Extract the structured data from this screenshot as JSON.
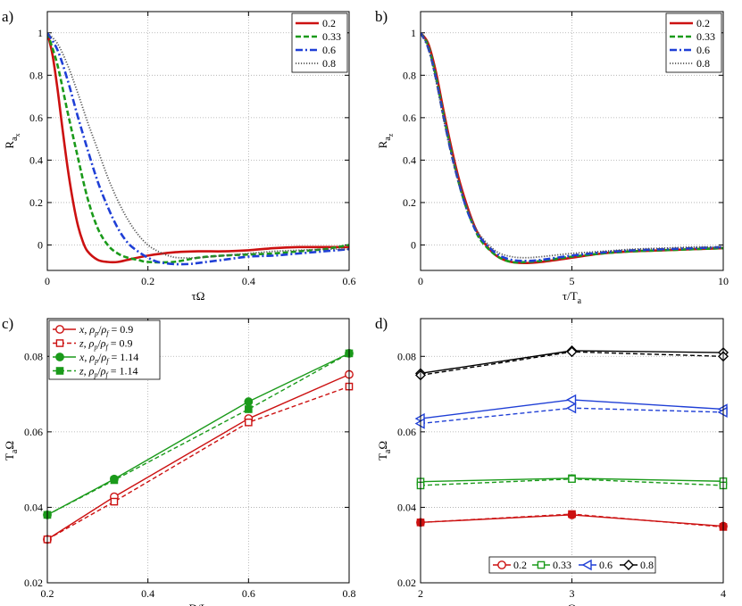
{
  "chart_data": [
    {
      "panel": "a)",
      "type": "line",
      "xlabel": "τΩ",
      "ylabel": "R",
      "ylabel_sub": "a",
      "ylabel_subsub": "x",
      "xlim": [
        0,
        0.6
      ],
      "ylim": [
        -0.12,
        1.1
      ],
      "xticks": [
        "0",
        "0.2",
        "0.4",
        "0.6"
      ],
      "xtick_values": [
        0,
        0.2,
        0.4,
        0.6
      ],
      "yticks": [
        "0",
        "0.2",
        "0.4",
        "0.6",
        "0.8",
        "1"
      ],
      "ytick_values": [
        0,
        0.2,
        0.4,
        0.6,
        0.8,
        1
      ],
      "grid": true,
      "legend": "top-right",
      "series": [
        {
          "name": "0.2",
          "color": "#cc1111",
          "dash": "solid",
          "width": 2.6,
          "x": [
            0,
            0.01,
            0.02,
            0.03,
            0.04,
            0.05,
            0.06,
            0.07,
            0.08,
            0.1,
            0.12,
            0.14,
            0.16,
            0.2,
            0.25,
            0.3,
            0.35,
            0.4,
            0.45,
            0.5,
            0.55,
            0.6
          ],
          "y": [
            1,
            0.9,
            0.74,
            0.55,
            0.37,
            0.22,
            0.1,
            0.02,
            -0.03,
            -0.07,
            -0.08,
            -0.08,
            -0.07,
            -0.05,
            -0.035,
            -0.03,
            -0.03,
            -0.025,
            -0.015,
            -0.01,
            -0.01,
            -0.01
          ]
        },
        {
          "name": "0.33",
          "color": "#1a9a1a",
          "dash": "6,3",
          "width": 2.6,
          "x": [
            0,
            0.02,
            0.04,
            0.06,
            0.08,
            0.1,
            0.12,
            0.14,
            0.16,
            0.18,
            0.2,
            0.25,
            0.3,
            0.35,
            0.4,
            0.45,
            0.5,
            0.55,
            0.6
          ],
          "y": [
            1,
            0.85,
            0.63,
            0.42,
            0.22,
            0.08,
            0.0,
            -0.04,
            -0.06,
            -0.07,
            -0.08,
            -0.08,
            -0.06,
            -0.05,
            -0.045,
            -0.04,
            -0.03,
            -0.02,
            0.0
          ]
        },
        {
          "name": "0.6",
          "color": "#1f3fd6",
          "dash": "8,3,2,3",
          "width": 2.6,
          "x": [
            0,
            0.02,
            0.04,
            0.06,
            0.08,
            0.1,
            0.12,
            0.14,
            0.16,
            0.18,
            0.2,
            0.22,
            0.25,
            0.28,
            0.3,
            0.35,
            0.4,
            0.45,
            0.5,
            0.55,
            0.6
          ],
          "y": [
            1,
            0.92,
            0.78,
            0.61,
            0.45,
            0.3,
            0.18,
            0.08,
            0.01,
            -0.03,
            -0.06,
            -0.08,
            -0.09,
            -0.09,
            -0.085,
            -0.07,
            -0.055,
            -0.05,
            -0.04,
            -0.03,
            -0.02
          ]
        },
        {
          "name": "0.8",
          "color": "#555555",
          "dash": "1.2,1.8",
          "width": 1.8,
          "x": [
            0,
            0.02,
            0.04,
            0.06,
            0.08,
            0.1,
            0.12,
            0.14,
            0.16,
            0.18,
            0.2,
            0.22,
            0.24,
            0.26,
            0.3,
            0.35,
            0.4,
            0.45,
            0.5,
            0.55,
            0.6
          ],
          "y": [
            1,
            0.95,
            0.85,
            0.72,
            0.58,
            0.45,
            0.32,
            0.21,
            0.12,
            0.05,
            0.0,
            -0.03,
            -0.05,
            -0.06,
            -0.06,
            -0.05,
            -0.04,
            -0.03,
            -0.025,
            -0.02,
            -0.02
          ]
        }
      ]
    },
    {
      "panel": "b)",
      "type": "line",
      "xlabel": "τ/T",
      "xlabel_sub": "a",
      "ylabel": "R",
      "ylabel_sub": "a",
      "ylabel_subsub": "z",
      "xlim": [
        0,
        10
      ],
      "ylim": [
        -0.12,
        1.1
      ],
      "xticks": [
        "0",
        "5",
        "10"
      ],
      "xtick_values": [
        0,
        5,
        10
      ],
      "yticks": [
        "0",
        "0.2",
        "0.4",
        "0.6",
        "0.8",
        "1"
      ],
      "ytick_values": [
        0,
        0.2,
        0.4,
        0.6,
        0.8,
        1
      ],
      "grid": true,
      "legend": "top-right",
      "series": [
        {
          "name": "0.2",
          "color": "#cc1111",
          "dash": "solid",
          "width": 2.6,
          "x": [
            0,
            0.25,
            0.5,
            0.75,
            1,
            1.25,
            1.5,
            1.75,
            2,
            2.5,
            3,
            3.5,
            4,
            5,
            6,
            7,
            8,
            9,
            10
          ],
          "y": [
            1,
            0.95,
            0.82,
            0.64,
            0.47,
            0.32,
            0.2,
            0.1,
            0.03,
            -0.05,
            -0.08,
            -0.085,
            -0.08,
            -0.06,
            -0.04,
            -0.03,
            -0.025,
            -0.02,
            -0.015
          ]
        },
        {
          "name": "0.33",
          "color": "#1a9a1a",
          "dash": "6,3",
          "width": 2.6,
          "x": [
            0,
            0.25,
            0.5,
            0.75,
            1,
            1.25,
            1.5,
            1.75,
            2,
            2.5,
            3,
            3.5,
            4,
            5,
            6,
            7,
            8,
            9,
            10
          ],
          "y": [
            1,
            0.94,
            0.8,
            0.62,
            0.45,
            0.3,
            0.18,
            0.09,
            0.02,
            -0.05,
            -0.08,
            -0.08,
            -0.075,
            -0.055,
            -0.04,
            -0.03,
            -0.025,
            -0.02,
            -0.015
          ]
        },
        {
          "name": "0.6",
          "color": "#1f3fd6",
          "dash": "8,3,2,3",
          "width": 2.6,
          "x": [
            0,
            0.25,
            0.5,
            0.75,
            1,
            1.25,
            1.5,
            1.75,
            2,
            2.5,
            3,
            3.5,
            4,
            5,
            6,
            7,
            8,
            9,
            10
          ],
          "y": [
            1,
            0.93,
            0.79,
            0.61,
            0.44,
            0.3,
            0.18,
            0.09,
            0.03,
            -0.04,
            -0.07,
            -0.075,
            -0.07,
            -0.05,
            -0.035,
            -0.025,
            -0.02,
            -0.015,
            -0.01
          ]
        },
        {
          "name": "0.8",
          "color": "#555555",
          "dash": "1.2,1.8",
          "width": 1.8,
          "x": [
            0,
            0.25,
            0.5,
            0.75,
            1,
            1.25,
            1.5,
            1.75,
            2,
            2.5,
            3,
            3.5,
            4,
            5,
            6,
            7,
            8,
            9,
            10
          ],
          "y": [
            1,
            0.93,
            0.78,
            0.6,
            0.44,
            0.3,
            0.19,
            0.1,
            0.04,
            -0.03,
            -0.055,
            -0.06,
            -0.055,
            -0.04,
            -0.03,
            -0.02,
            -0.015,
            -0.01,
            -0.01
          ]
        }
      ]
    },
    {
      "panel": "c)",
      "type": "line",
      "xlabel": "D/L",
      "ylabel": "T",
      "ylabel_sub": "a",
      "ylabel_suffix": "Ω",
      "xlim": [
        0.2,
        0.8
      ],
      "ylim": [
        0.02,
        0.09
      ],
      "xticks": [
        "0.2",
        "0.4",
        "0.6",
        "0.8"
      ],
      "xtick_values": [
        0.2,
        0.4,
        0.6,
        0.8
      ],
      "yticks": [
        "0.02",
        "0.04",
        "0.06",
        "0.08"
      ],
      "ytick_values": [
        0.02,
        0.04,
        0.06,
        0.08
      ],
      "grid": true,
      "legend": "top-left",
      "series": [
        {
          "name": "x, ρp/ρf = 0.9",
          "component": "x",
          "ratio": "0.9",
          "color": "#cc1111",
          "dash": "solid",
          "marker": "circle-open",
          "x": [
            0.2,
            0.333,
            0.6,
            0.8
          ],
          "y": [
            0.0315,
            0.0428,
            0.0635,
            0.0752
          ]
        },
        {
          "name": "z, ρp/ρf = 0.9",
          "component": "z",
          "ratio": "0.9",
          "color": "#cc1111",
          "dash": "5,3",
          "marker": "square-open",
          "x": [
            0.2,
            0.333,
            0.6,
            0.8
          ],
          "y": [
            0.0315,
            0.0415,
            0.0625,
            0.072
          ]
        },
        {
          "name": "x, ρp/ρf = 1.14",
          "component": "x",
          "ratio": "1.14",
          "color": "#1a9a1a",
          "dash": "solid",
          "marker": "circle-filled",
          "x": [
            0.2,
            0.333,
            0.6,
            0.8
          ],
          "y": [
            0.038,
            0.0475,
            0.068,
            0.0808
          ]
        },
        {
          "name": "z, ρp/ρf = 1.14",
          "component": "z",
          "ratio": "1.14",
          "color": "#1a9a1a",
          "dash": "5,3",
          "marker": "square-filled",
          "x": [
            0.2,
            0.333,
            0.6,
            0.8
          ],
          "y": [
            0.038,
            0.0472,
            0.066,
            0.0808
          ]
        }
      ]
    },
    {
      "panel": "d)",
      "type": "line",
      "xlabel": "Ω",
      "ylabel": "T",
      "ylabel_sub": "a",
      "ylabel_suffix": "Ω",
      "xlim": [
        2,
        4
      ],
      "ylim": [
        0.02,
        0.09
      ],
      "xticks": [
        "2",
        "3",
        "4"
      ],
      "xtick_values": [
        2,
        3,
        4
      ],
      "yticks": [
        "0.02",
        "0.04",
        "0.06",
        "0.08"
      ],
      "ytick_values": [
        0.02,
        0.04,
        0.06,
        0.08
      ],
      "grid": true,
      "legend": "bottom-center",
      "legend_entries": [
        {
          "label": "0.2",
          "color": "#cc1111",
          "marker": "circle-open"
        },
        {
          "label": "0.33",
          "color": "#1a9a1a",
          "marker": "square-open"
        },
        {
          "label": "0.6",
          "color": "#1f3fd6",
          "marker": "triangle-left-open"
        },
        {
          "label": "0.8",
          "color": "#000000",
          "marker": "diamond-open"
        }
      ],
      "series": [
        {
          "name": "0.2 solid",
          "color": "#cc1111",
          "dash": "solid",
          "marker": "circle-filled",
          "x": [
            2,
            3,
            4
          ],
          "y": [
            0.036,
            0.038,
            0.035
          ]
        },
        {
          "name": "0.2 dashed",
          "color": "#cc1111",
          "dash": "5,3",
          "marker": "square-filled",
          "x": [
            2,
            3,
            4
          ],
          "y": [
            0.036,
            0.0382,
            0.0348
          ]
        },
        {
          "name": "0.33 solid",
          "color": "#1a9a1a",
          "dash": "solid",
          "marker": "square-open",
          "x": [
            2,
            3,
            4
          ],
          "y": [
            0.0468,
            0.0477,
            0.0469
          ]
        },
        {
          "name": "0.33 dashed",
          "color": "#1a9a1a",
          "dash": "5,3",
          "marker": "square-open",
          "x": [
            2,
            3,
            4
          ],
          "y": [
            0.0458,
            0.0475,
            0.0458
          ]
        },
        {
          "name": "0.6 solid",
          "color": "#1f3fd6",
          "dash": "solid",
          "marker": "triangle-left-open",
          "x": [
            2,
            3,
            4
          ],
          "y": [
            0.0635,
            0.0685,
            0.066
          ]
        },
        {
          "name": "0.6 dashed",
          "color": "#1f3fd6",
          "dash": "5,3",
          "marker": "triangle-left-open",
          "x": [
            2,
            3,
            4
          ],
          "y": [
            0.0622,
            0.0663,
            0.0652
          ]
        },
        {
          "name": "0.8 solid",
          "color": "#000000",
          "dash": "solid",
          "marker": "diamond-open",
          "x": [
            2,
            3,
            4
          ],
          "y": [
            0.0755,
            0.0815,
            0.081
          ]
        },
        {
          "name": "0.8 dashed",
          "color": "#000000",
          "dash": "5,3",
          "marker": "diamond-open",
          "x": [
            2,
            3,
            4
          ],
          "y": [
            0.075,
            0.0812,
            0.08
          ]
        }
      ]
    }
  ]
}
